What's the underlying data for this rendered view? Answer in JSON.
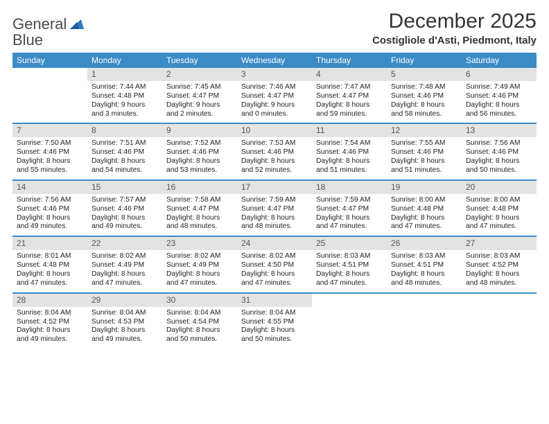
{
  "brand": {
    "line1": "General",
    "line2": "Blue"
  },
  "title": "December 2025",
  "location": "Costigliole d'Asti, Piedmont, Italy",
  "colors": {
    "header_bg": "#3b8bc6",
    "header_text": "#ffffff",
    "daynum_bg": "#e3e3e3",
    "week_border": "#3b8bc6",
    "text": "#222222",
    "logo_gray": "#4a4a4a",
    "logo_blue": "#2f7bbf"
  },
  "dow": [
    "Sunday",
    "Monday",
    "Tuesday",
    "Wednesday",
    "Thursday",
    "Friday",
    "Saturday"
  ],
  "weeks": [
    [
      null,
      {
        "n": "1",
        "sr": "7:44 AM",
        "ss": "4:48 PM",
        "dl": "9 hours and 3 minutes."
      },
      {
        "n": "2",
        "sr": "7:45 AM",
        "ss": "4:47 PM",
        "dl": "9 hours and 2 minutes."
      },
      {
        "n": "3",
        "sr": "7:46 AM",
        "ss": "4:47 PM",
        "dl": "9 hours and 0 minutes."
      },
      {
        "n": "4",
        "sr": "7:47 AM",
        "ss": "4:47 PM",
        "dl": "8 hours and 59 minutes."
      },
      {
        "n": "5",
        "sr": "7:48 AM",
        "ss": "4:46 PM",
        "dl": "8 hours and 58 minutes."
      },
      {
        "n": "6",
        "sr": "7:49 AM",
        "ss": "4:46 PM",
        "dl": "8 hours and 56 minutes."
      }
    ],
    [
      {
        "n": "7",
        "sr": "7:50 AM",
        "ss": "4:46 PM",
        "dl": "8 hours and 55 minutes."
      },
      {
        "n": "8",
        "sr": "7:51 AM",
        "ss": "4:46 PM",
        "dl": "8 hours and 54 minutes."
      },
      {
        "n": "9",
        "sr": "7:52 AM",
        "ss": "4:46 PM",
        "dl": "8 hours and 53 minutes."
      },
      {
        "n": "10",
        "sr": "7:53 AM",
        "ss": "4:46 PM",
        "dl": "8 hours and 52 minutes."
      },
      {
        "n": "11",
        "sr": "7:54 AM",
        "ss": "4:46 PM",
        "dl": "8 hours and 51 minutes."
      },
      {
        "n": "12",
        "sr": "7:55 AM",
        "ss": "4:46 PM",
        "dl": "8 hours and 51 minutes."
      },
      {
        "n": "13",
        "sr": "7:56 AM",
        "ss": "4:46 PM",
        "dl": "8 hours and 50 minutes."
      }
    ],
    [
      {
        "n": "14",
        "sr": "7:56 AM",
        "ss": "4:46 PM",
        "dl": "8 hours and 49 minutes."
      },
      {
        "n": "15",
        "sr": "7:57 AM",
        "ss": "4:46 PM",
        "dl": "8 hours and 49 minutes."
      },
      {
        "n": "16",
        "sr": "7:58 AM",
        "ss": "4:47 PM",
        "dl": "8 hours and 48 minutes."
      },
      {
        "n": "17",
        "sr": "7:59 AM",
        "ss": "4:47 PM",
        "dl": "8 hours and 48 minutes."
      },
      {
        "n": "18",
        "sr": "7:59 AM",
        "ss": "4:47 PM",
        "dl": "8 hours and 47 minutes."
      },
      {
        "n": "19",
        "sr": "8:00 AM",
        "ss": "4:48 PM",
        "dl": "8 hours and 47 minutes."
      },
      {
        "n": "20",
        "sr": "8:00 AM",
        "ss": "4:48 PM",
        "dl": "8 hours and 47 minutes."
      }
    ],
    [
      {
        "n": "21",
        "sr": "8:01 AM",
        "ss": "4:48 PM",
        "dl": "8 hours and 47 minutes."
      },
      {
        "n": "22",
        "sr": "8:02 AM",
        "ss": "4:49 PM",
        "dl": "8 hours and 47 minutes."
      },
      {
        "n": "23",
        "sr": "8:02 AM",
        "ss": "4:49 PM",
        "dl": "8 hours and 47 minutes."
      },
      {
        "n": "24",
        "sr": "8:02 AM",
        "ss": "4:50 PM",
        "dl": "8 hours and 47 minutes."
      },
      {
        "n": "25",
        "sr": "8:03 AM",
        "ss": "4:51 PM",
        "dl": "8 hours and 47 minutes."
      },
      {
        "n": "26",
        "sr": "8:03 AM",
        "ss": "4:51 PM",
        "dl": "8 hours and 48 minutes."
      },
      {
        "n": "27",
        "sr": "8:03 AM",
        "ss": "4:52 PM",
        "dl": "8 hours and 48 minutes."
      }
    ],
    [
      {
        "n": "28",
        "sr": "8:04 AM",
        "ss": "4:52 PM",
        "dl": "8 hours and 49 minutes."
      },
      {
        "n": "29",
        "sr": "8:04 AM",
        "ss": "4:53 PM",
        "dl": "8 hours and 49 minutes."
      },
      {
        "n": "30",
        "sr": "8:04 AM",
        "ss": "4:54 PM",
        "dl": "8 hours and 50 minutes."
      },
      {
        "n": "31",
        "sr": "8:04 AM",
        "ss": "4:55 PM",
        "dl": "8 hours and 50 minutes."
      },
      null,
      null,
      null
    ]
  ],
  "labels": {
    "sunrise": "Sunrise:",
    "sunset": "Sunset:",
    "daylight": "Daylight:"
  }
}
